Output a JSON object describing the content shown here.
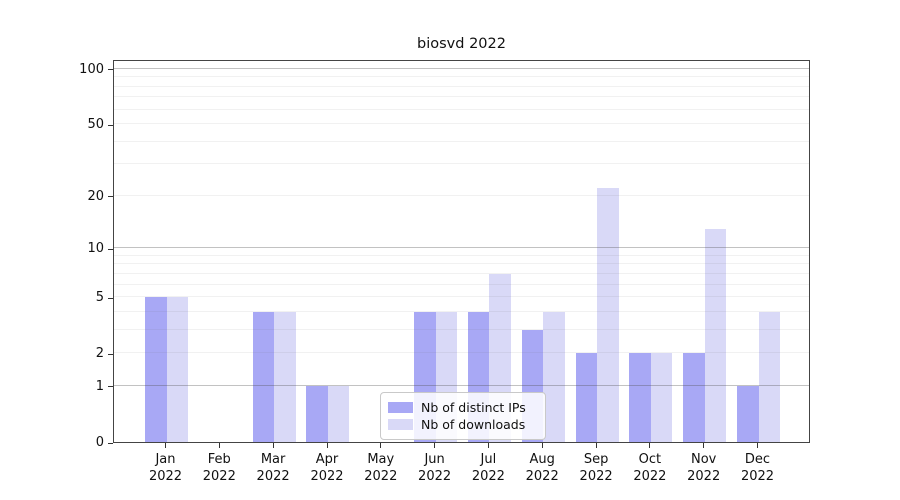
{
  "title": "biosvd 2022",
  "colors": {
    "distinct_ips": "#a8a8f5",
    "downloads": "#d9d9f7",
    "spine": "#444444"
  },
  "y_axis": {
    "tick_labels": [
      "0",
      "1",
      "2",
      "5",
      "10",
      "20",
      "50",
      "100"
    ],
    "tick_values": [
      0,
      1,
      2,
      5,
      10,
      20,
      50,
      100
    ],
    "minor_grid_values": [
      2,
      3,
      4,
      5,
      6,
      7,
      8,
      9,
      20,
      30,
      40,
      50,
      60,
      70,
      80,
      90
    ],
    "major_grid_values": [
      1,
      10,
      100
    ]
  },
  "chart_data": {
    "type": "bar",
    "title": "biosvd 2022",
    "categories": [
      "Jan 2022",
      "Feb 2022",
      "Mar 2022",
      "Apr 2022",
      "May 2022",
      "Jun 2022",
      "Jul 2022",
      "Aug 2022",
      "Sep 2022",
      "Oct 2022",
      "Nov 2022",
      "Dec 2022"
    ],
    "series": [
      {
        "name": "Nb of distinct IPs",
        "color": "#a8a8f5",
        "values": [
          5,
          0,
          4,
          1,
          0,
          4,
          4,
          3,
          2,
          2,
          2,
          1
        ]
      },
      {
        "name": "Nb of downloads",
        "color": "#d9d9f7",
        "values": [
          5,
          0,
          4,
          1,
          0,
          4,
          7,
          4,
          22,
          2,
          13,
          4
        ]
      }
    ],
    "xlabel": "",
    "ylabel": "",
    "yscale": "log1p",
    "ylim": [
      0,
      113
    ],
    "yticks": [
      0,
      1,
      2,
      5,
      10,
      20,
      50,
      100
    ],
    "grid": "horizontal; major lines at 1, 10, 100; faint minor lines at 2-9 and 20-90; drawn over bars",
    "legend_position": "lower center-left inside plot"
  }
}
